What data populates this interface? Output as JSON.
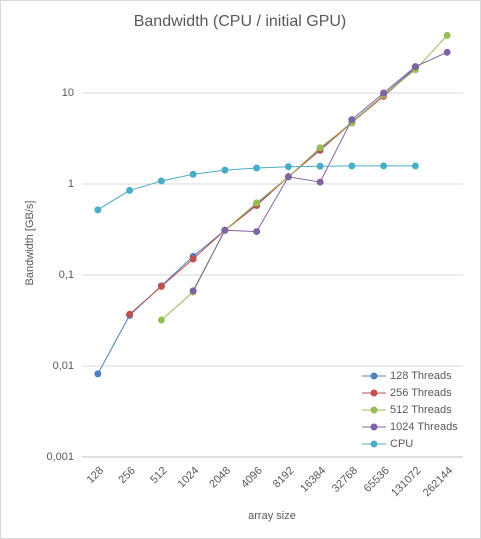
{
  "chart_data": {
    "type": "line",
    "title": "Bandwidth (CPU / initial GPU)",
    "x_label": "array size",
    "y_label": "Bandwidth [GB/s]",
    "categories": [
      "128",
      "256",
      "512",
      "1024",
      "2048",
      "4096",
      "8192",
      "16384",
      "32768",
      "65536",
      "131072",
      "262144"
    ],
    "log_y": true,
    "grid": true,
    "legend": "bottom-right",
    "ylim": [
      0.001,
      50
    ],
    "yticks": [
      {
        "value": 0.001,
        "label": "0,001"
      },
      {
        "value": 0.01,
        "label": "0,01"
      },
      {
        "value": 0.1,
        "label": "0,1"
      },
      1,
      10
    ],
    "series": [
      {
        "name": "128 Threads",
        "color": "#4F81BD",
        "values": [
          0.0082,
          0.036,
          0.076,
          0.16,
          0.31,
          0.6,
          1.2,
          2.4,
          4.8,
          9.5,
          19,
          null
        ]
      },
      {
        "name": "256 Threads",
        "color": "#C0504D",
        "values": [
          null,
          0.037,
          0.075,
          0.15,
          0.31,
          0.58,
          1.2,
          2.35,
          4.7,
          9.2,
          18.5,
          null
        ]
      },
      {
        "name": "512 Threads",
        "color": "#9BBB59",
        "values": [
          null,
          null,
          0.032,
          0.065,
          0.31,
          0.62,
          1.2,
          2.5,
          4.7,
          9.5,
          18,
          43
        ]
      },
      {
        "name": "1024 Threads",
        "color": "#8064A2",
        "values": [
          null,
          null,
          null,
          0.067,
          0.31,
          0.3,
          1.2,
          1.05,
          5.1,
          10,
          19.5,
          28
        ]
      },
      {
        "name": "CPU",
        "color": "#4BACC6",
        "values": [
          0.52,
          0.85,
          1.08,
          1.28,
          1.42,
          1.5,
          1.55,
          1.57,
          1.58,
          1.58,
          1.58,
          null
        ]
      }
    ]
  }
}
